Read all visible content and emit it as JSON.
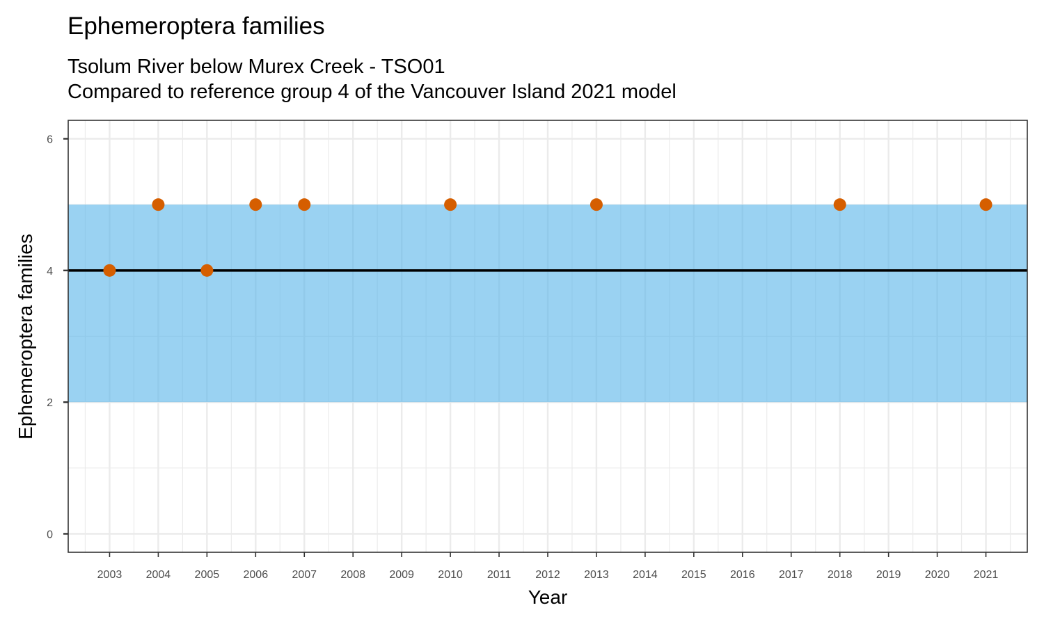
{
  "chart_data": {
    "type": "scatter",
    "title": "Ephemeroptera families",
    "subtitle_lines": [
      "Tsolum River below Murex Creek - TSO01",
      "Compared to reference group 4 of the Vancouver Island 2021 model"
    ],
    "xlabel": "Year",
    "ylabel": "Ephemeroptera families",
    "x_ticks": [
      "2003",
      "2004",
      "2005",
      "2006",
      "2007",
      "2008",
      "2009",
      "2010",
      "2011",
      "2012",
      "2013",
      "2014",
      "2015",
      "2016",
      "2017",
      "2018",
      "2019",
      "2020",
      "2021"
    ],
    "y_ticks": [
      0,
      2,
      4,
      6
    ],
    "xlim": [
      2002.15,
      2021.85
    ],
    "ylim": [
      -0.28,
      6.28
    ],
    "reference_band": {
      "low": 2,
      "high": 5,
      "color": "#56B4E9"
    },
    "reference_line": {
      "value": 4,
      "color": "#000000"
    },
    "points": [
      {
        "x": 2003,
        "y": 4
      },
      {
        "x": 2004,
        "y": 5
      },
      {
        "x": 2005,
        "y": 4
      },
      {
        "x": 2006,
        "y": 5
      },
      {
        "x": 2007,
        "y": 5
      },
      {
        "x": 2010,
        "y": 5
      },
      {
        "x": 2013,
        "y": 5
      },
      {
        "x": 2018,
        "y": 5
      },
      {
        "x": 2021,
        "y": 5
      }
    ],
    "point_color": "#D55E00",
    "grid": true,
    "legend": "none"
  }
}
